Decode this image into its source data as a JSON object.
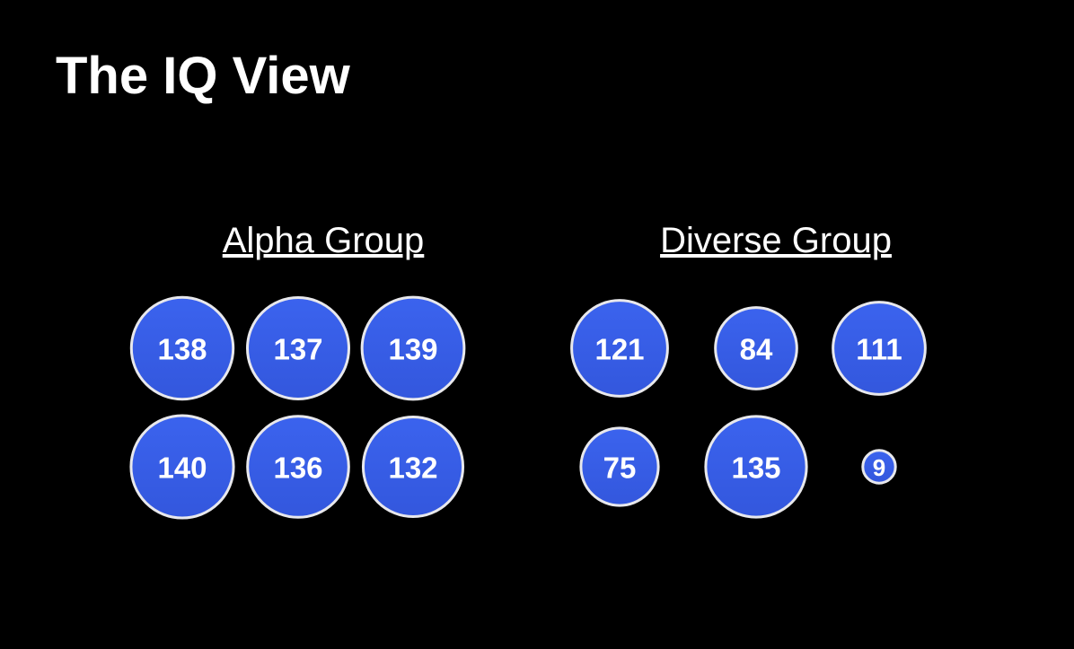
{
  "title": "The IQ View",
  "groups": [
    {
      "name": "Alpha Group",
      "items": [
        138,
        137,
        139,
        140,
        136,
        132
      ]
    },
    {
      "name": "Diverse Group",
      "items": [
        121,
        84,
        111,
        75,
        135,
        9
      ]
    }
  ]
}
